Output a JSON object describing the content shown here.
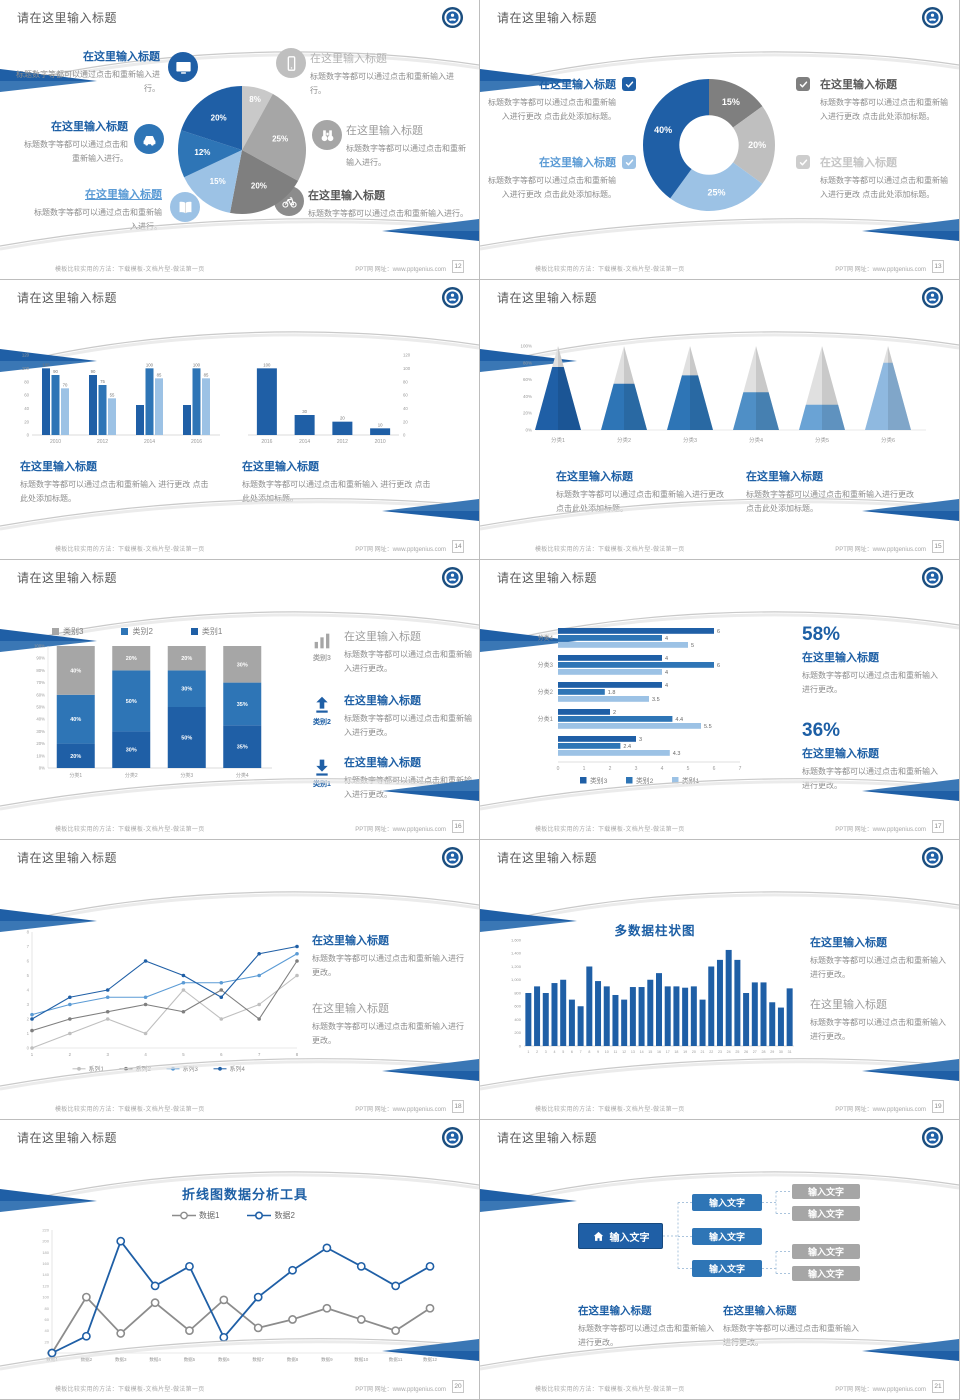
{
  "palette": {
    "dark_blue": "#1f5fa6",
    "medium_blue": "#2e75b6",
    "sky_blue": "#5b9bd5",
    "light_blue": "#9cc2e5",
    "pale_blue": "#bdd7ee",
    "dark_gray": "#7f7f7f",
    "medium_gray": "#a6a6a6",
    "light_gray": "#bfbfbf",
    "title_blue": "#1d5fa5",
    "body_gray": "#8c8c8c",
    "header_gray": "#5a5a5a",
    "accent_wedge": "#2f6fae"
  },
  "common": {
    "header_title": "请在这里输入标题",
    "placeholder_title": "在这里输入标题",
    "footer_left": "模板比较实用的方法：下载模板-文档片型-做法第一页",
    "footer_right": "PPT网 网址：www.pptgenius.com",
    "input_text": "输入文字"
  },
  "slides": {
    "s12": {
      "page": "12",
      "left": [
        {
          "icon": "monitor",
          "title": "在这里输入标题",
          "body": "标题数字等都可以通过点击和重新输入进行。"
        },
        {
          "icon": "car",
          "title": "在这里输入标题",
          "body": "标题数字等都可以通过点击和重新输入进行。"
        },
        {
          "icon": "book",
          "title": "在这里输入标题",
          "body": "标题数字等都可以通过点击和重新输入进行。"
        }
      ],
      "right": [
        {
          "icon": "phone",
          "title": "在这里输入标题",
          "body": "标题数字等都可以通过点击和重新输入进行。"
        },
        {
          "icon": "binoculars",
          "title": "在这里输入标题",
          "body": "标题数字等都可以通过点击和重新输入进行。"
        },
        {
          "icon": "bicycle",
          "title": "在这里输入标题",
          "body": "标题数字等都可以通过点击和重新输入进行。"
        }
      ]
    },
    "s13": {
      "page": "13",
      "left": [
        {
          "title": "在这里输入标题",
          "body": "标题数字等都可以通过点击和重新输入进行更改 点击此处添加标题。"
        },
        {
          "title": "在这里输入标题",
          "body": "标题数字等都可以通过点击和重新输入进行更改 点击此处添加标题。"
        }
      ],
      "right": [
        {
          "title": "在这里输入标题",
          "body": "标题数字等都可以通过点击和重新输入进行更改 点击此处添加标题。"
        },
        {
          "title": "在这里输入标题",
          "body": "标题数字等都可以通过点击和重新输入进行更改 点击此处添加标题。"
        }
      ]
    },
    "s14": {
      "page": "14",
      "blocks": [
        {
          "title": "在这里输入标题",
          "body": "标题数字等都可以通过点击和重新输入 进行更改 点击此处添加标题。"
        },
        {
          "title": "在这里输入标题",
          "body": "标题数字等都可以通过点击和重新输入 进行更改 点击此处添加标题。"
        }
      ]
    },
    "s15": {
      "page": "15",
      "blocks": [
        {
          "title": "在这里输入标题",
          "body": "标题数字等都可以通过点击和重新输入进行更改 点击此处添加标题。"
        },
        {
          "title": "在这里输入标题",
          "body": "标题数字等都可以通过点击和重新输入进行更改 点击此处添加标题。"
        }
      ]
    },
    "s16": {
      "page": "16",
      "items": [
        {
          "icon": "chart-bars",
          "label": "类别3",
          "title": "在这里输入标题",
          "body": "标题数字等都可以通过点击和重新输入进行更改。"
        },
        {
          "icon": "arrow-up",
          "label": "类别2",
          "title": "在这里输入标题",
          "body": "标题数字等都可以通过点击和重新输入进行更改。"
        },
        {
          "icon": "arrow-down",
          "label": "类别1",
          "title": "在这里输入标题",
          "body": "标题数字等都可以通过点击和重新输入进行更改。"
        }
      ]
    },
    "s17": {
      "page": "17",
      "stats": [
        {
          "value": "58%",
          "title": "在这里输入标题",
          "body": "标题数字等都可以通过点击和重新输入进行更改。"
        },
        {
          "value": "36%",
          "title": "在这里输入标题",
          "body": "标题数字等都可以通过点击和重新输入进行更改。"
        }
      ]
    },
    "s18": {
      "page": "18",
      "blocks": [
        {
          "title": "在这里输入标题",
          "body": "标题数字等都可以通过点击和重新输入进行更改。"
        },
        {
          "title": "在这里输入标题",
          "body": "标题数字等都可以通过点击和重新输入进行更改。"
        }
      ]
    },
    "s19": {
      "page": "19",
      "blocks": [
        {
          "title": "在这里输入标题",
          "body": "标题数字等都可以通过点击和重新输入进行更改。"
        },
        {
          "title": "在这里输入标题",
          "body": "标题数字等都可以通过点击和重新输入进行更改。"
        }
      ]
    },
    "s20": {
      "page": "20"
    },
    "s21": {
      "page": "21",
      "boxes": {
        "root": "输入文字",
        "mid": [
          "输入文字",
          "输入文字",
          "输入文字"
        ],
        "leaf": [
          "输入文字",
          "输入文字",
          "输入文字",
          "输入文字"
        ]
      },
      "blocks": [
        {
          "title": "在这里输入标题",
          "body": "标题数字等都可以通过点击和重新输入进行更改。"
        },
        {
          "title": "在这里输入标题",
          "body": "标题数字等都可以通过点击和重新输入进行更改。"
        }
      ]
    }
  },
  "chart_data": [
    {
      "id": "c12",
      "slide": 12,
      "type": "pie",
      "slices": [
        {
          "label": "8%",
          "value": 8,
          "color": "#c9c9c9"
        },
        {
          "label": "25%",
          "value": 25,
          "color": "#a6a6a6"
        },
        {
          "label": "20%",
          "value": 20,
          "color": "#7f7f7f"
        },
        {
          "label": "15%",
          "value": 15,
          "color": "#9cc2e5"
        },
        {
          "label": "12%",
          "value": 12,
          "color": "#2e75b6"
        },
        {
          "label": "20%",
          "value": 20,
          "color": "#1f5fa6"
        }
      ]
    },
    {
      "id": "c13",
      "slide": 13,
      "type": "donut",
      "inner_ratio": 0.45,
      "slices": [
        {
          "label": "15%",
          "value": 15,
          "color": "#7f7f7f"
        },
        {
          "label": "20%",
          "value": 20,
          "color": "#bfbfbf"
        },
        {
          "label": "25%",
          "value": 25,
          "color": "#9cc2e5"
        },
        {
          "label": "40%",
          "value": 40,
          "color": "#1f5fa6"
        }
      ]
    },
    {
      "id": "c14a",
      "slide": 14,
      "type": "grouped-bar",
      "categories": [
        "2010",
        "2012",
        "2014",
        "2016"
      ],
      "series": [
        {
          "name": "系列1",
          "color": "#1f5fa6",
          "values": [
            100,
            90,
            45,
            45
          ],
          "labels": [
            "100",
            "90",
            "",
            ""
          ]
        },
        {
          "name": "系列2",
          "color": "#2e75b6",
          "values": [
            90,
            75,
            100,
            100
          ],
          "labels": [
            "90",
            "75",
            "100",
            "100"
          ]
        },
        {
          "name": "系列3",
          "color": "#9cc2e5",
          "values": [
            70,
            55,
            85,
            85
          ],
          "labels": [
            "70",
            "55",
            "85",
            "85"
          ]
        }
      ],
      "ylim": [
        0,
        120
      ],
      "yticks": [
        0,
        20,
        40,
        60,
        80,
        100,
        120
      ],
      "axis": "left"
    },
    {
      "id": "c14b",
      "slide": 14,
      "type": "bar",
      "categories": [
        "2016",
        "2014",
        "2012",
        "2010"
      ],
      "series": [
        {
          "name": "系列1",
          "color": "#1f5fa6",
          "values": [
            100,
            30,
            20,
            10
          ],
          "labels": [
            "100",
            "30",
            "20",
            "10"
          ]
        }
      ],
      "ylim": [
        0,
        120
      ],
      "yticks": [
        0,
        20,
        40,
        60,
        80,
        100,
        120
      ],
      "axis": "right"
    },
    {
      "id": "c15",
      "slide": 15,
      "type": "pyramid",
      "categories": [
        "分类1",
        "分类2",
        "分类3",
        "分类4",
        "分类5",
        "分类6"
      ],
      "values_pct": [
        75,
        55,
        65,
        45,
        30,
        80
      ],
      "colors": [
        "#1f5fa6",
        "#2e75b6",
        "#2e75b6",
        "#4f8fc6",
        "#6aa3d5",
        "#8fb9e0"
      ],
      "top_color": "#e0e0e0",
      "yticks": [
        "0%",
        "20%",
        "40%",
        "60%",
        "80%",
        "100%"
      ]
    },
    {
      "id": "c16",
      "slide": 16,
      "type": "stacked-bar",
      "categories": [
        "分类1",
        "分类2",
        "分类3",
        "分类4"
      ],
      "series": [
        {
          "name": "类别1",
          "color": "#1f5fa6",
          "values": [
            20,
            30,
            50,
            35
          ]
        },
        {
          "name": "类别2",
          "color": "#2e75b6",
          "values": [
            40,
            50,
            30,
            35
          ]
        },
        {
          "name": "类别3",
          "color": "#a6a6a6",
          "values": [
            40,
            20,
            20,
            30
          ]
        }
      ],
      "yticks": [
        "0%",
        "10%",
        "20%",
        "30%",
        "40%",
        "50%",
        "60%",
        "70%",
        "80%",
        "90%",
        "100%"
      ],
      "legend": [
        {
          "label": "类别3",
          "color": "#a6a6a6"
        },
        {
          "label": "类别2",
          "color": "#2e75b6"
        },
        {
          "label": "类别1",
          "color": "#1f5fa6"
        }
      ]
    },
    {
      "id": "c17",
      "slide": 17,
      "type": "hbar",
      "xticks": [
        0,
        1,
        2,
        3,
        4,
        5,
        6,
        7
      ],
      "colors": [
        "#1f5fa6",
        "#2e75b6",
        "#9cc2e5"
      ],
      "groups": [
        {
          "label": "分类4",
          "values": [
            6,
            4,
            5
          ]
        },
        {
          "label": "分类3",
          "values": [
            4,
            6,
            4
          ]
        },
        {
          "label": "分类2",
          "values": [
            4,
            1.8,
            3.5
          ]
        },
        {
          "label": "分类1",
          "values": [
            2,
            4.4,
            5.5
          ]
        },
        {
          "label": "",
          "values": [
            3,
            2.4,
            4.3
          ]
        }
      ],
      "legend": [
        {
          "label": "类别3",
          "color": "#1f5fa6"
        },
        {
          "label": "类别2",
          "color": "#2e75b6"
        },
        {
          "label": "类别1",
          "color": "#9cc2e5"
        }
      ]
    },
    {
      "id": "c18",
      "slide": 18,
      "type": "line",
      "x": [
        "1",
        "2",
        "3",
        "4",
        "5",
        "6",
        "7",
        "8"
      ],
      "ymax": 8,
      "yticks": [
        0,
        1,
        2,
        3,
        4,
        5,
        6,
        7,
        8
      ],
      "series": [
        {
          "name": "系列1",
          "color": "#bfbfbf",
          "values": [
            0,
            1,
            2,
            1,
            4,
            2,
            3,
            5
          ]
        },
        {
          "name": "系列2",
          "color": "#7f7f7f",
          "values": [
            1.2,
            2,
            2.5,
            3,
            2.5,
            4,
            2,
            6
          ]
        },
        {
          "name": "系列3",
          "color": "#5b9bd5",
          "values": [
            2.3,
            3,
            3.5,
            3.5,
            4.5,
            4.5,
            5,
            6.5
          ]
        },
        {
          "name": "系列4",
          "color": "#1f5fa6",
          "values": [
            2,
            3.5,
            4,
            6,
            5,
            3.5,
            6.5,
            7
          ]
        }
      ],
      "marker": "dot",
      "legend_position": "bottom"
    },
    {
      "id": "c19",
      "slide": 19,
      "type": "column",
      "title": "多数据柱状图",
      "color": "#1f5fa6",
      "x": [
        "1",
        "2",
        "3",
        "4",
        "5",
        "6",
        "7",
        "8",
        "9",
        "10",
        "11",
        "12",
        "13",
        "14",
        "15",
        "16",
        "17",
        "18",
        "19",
        "20",
        "21",
        "22",
        "23",
        "24",
        "25",
        "26",
        "27",
        "28",
        "29",
        "30",
        "31"
      ],
      "values": [
        800,
        900,
        800,
        950,
        1000,
        700,
        600,
        1200,
        980,
        900,
        770,
        700,
        890,
        890,
        1000,
        1100,
        900,
        900,
        880,
        900,
        700,
        1200,
        1300,
        1450,
        1300,
        800,
        960,
        960,
        660,
        580,
        870
      ],
      "ylim": [
        0,
        1600
      ],
      "yticks": [
        "0",
        "200",
        "400",
        "600",
        "800",
        "1,000",
        "1,200",
        "1,400",
        "1,600"
      ]
    },
    {
      "id": "c20",
      "slide": 20,
      "type": "line",
      "title": "折线图数据分析工具",
      "x": [
        "数据1",
        "数据2",
        "数据3",
        "数据4",
        "数据5",
        "数据6",
        "数据7",
        "数据8",
        "数据9",
        "数据10",
        "数据11",
        "数据12"
      ],
      "ymax": 220,
      "yticks": [
        0,
        20,
        40,
        60,
        80,
        100,
        120,
        140,
        160,
        180,
        200,
        220
      ],
      "series": [
        {
          "name": "数据1",
          "color": "#8c8c8c",
          "values": [
            0,
            100,
            35,
            90,
            40,
            95,
            45,
            60,
            80,
            60,
            40,
            80
          ]
        },
        {
          "name": "数据2",
          "color": "#1f5fa6",
          "values": [
            0,
            30,
            200,
            120,
            155,
            28,
            100,
            148,
            188,
            155,
            120,
            155
          ]
        }
      ],
      "marker": "ring",
      "legend_position": "top"
    }
  ]
}
